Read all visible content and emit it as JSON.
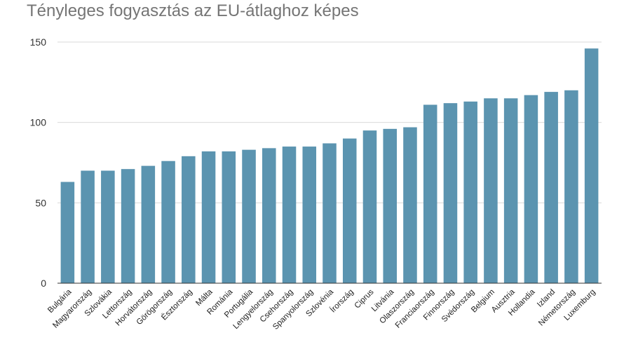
{
  "chart_data": {
    "type": "bar",
    "title": "Tényleges fogyasztás az EU-átlaghoz képes",
    "xlabel": "",
    "ylabel": "",
    "ylim": [
      0,
      150
    ],
    "yticks": [
      "0",
      "50",
      "100",
      "150"
    ],
    "grid": true,
    "legend": "none",
    "colors": {
      "bar": "#5b94b0",
      "grid": "#d9d9d9",
      "axis": "#333333",
      "title": "#757575"
    },
    "categories": [
      "Bulgária",
      "Magyarország",
      "Szlovákia",
      "Lettország",
      "Horvátország",
      "Görögország",
      "Észtország",
      "Málta",
      "Románia",
      "Portugália",
      "Lengyelország",
      "Csehország",
      "Spanyolország",
      "Szlovénia",
      "Írország",
      "Ciprus",
      "Litvánia",
      "Olaszország",
      "Franciaország",
      "Finnország",
      "Svédország",
      "Belgium",
      "Ausztria",
      "Hollandia",
      "Izland",
      "Németország",
      "Luxemburg"
    ],
    "values": [
      63,
      70,
      70,
      71,
      73,
      76,
      79,
      82,
      82,
      83,
      84,
      85,
      85,
      87,
      90,
      95,
      96,
      97,
      111,
      112,
      113,
      115,
      115,
      117,
      119,
      120,
      146
    ]
  }
}
